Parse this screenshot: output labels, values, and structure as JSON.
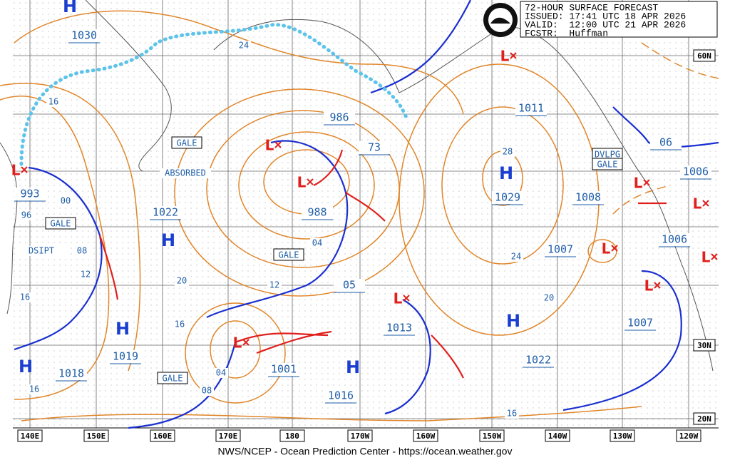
{
  "header": {
    "lines": [
      "72-HOUR SURFACE FORECAST",
      "ISSUED: 17:41 UTC 18 APR 2026",
      "VALID:  12:00 UTC 21 APR 2026",
      "FCSTR:  Huffman"
    ]
  },
  "footer": "NWS/NCEP - Ocean Prediction Center - https://ocean.weather.gov",
  "longitudes": [
    "140E",
    "150E",
    "160E",
    "170E",
    "180",
    "170W",
    "160W",
    "150W",
    "140W",
    "130W",
    "120W"
  ],
  "latitudes": [
    "60N",
    "30N",
    "20N"
  ],
  "pressure_labels": [
    "1030",
    "993",
    "1022",
    "1019",
    "1018",
    "986",
    "988",
    "73",
    "05",
    "1001",
    "1016",
    "1013",
    "1011",
    "1029",
    "1008",
    "1007",
    "1006",
    "06",
    "1006",
    "1007",
    "1022"
  ],
  "isobar_labels": [
    "24",
    "16",
    "96",
    "00",
    "08",
    "12",
    "20",
    "16",
    "12",
    "04",
    "04",
    "08",
    "16",
    "16",
    "28",
    "24",
    "20",
    "16"
  ],
  "boxed_warnings": [
    "GALE",
    "GALE",
    "GALE",
    "GALE",
    "DVLPG",
    "GALE"
  ],
  "plain_notes": [
    "ABSORBED",
    "DSIPT"
  ],
  "highs": [
    "H",
    "H",
    "H",
    "H",
    "H",
    "H",
    "H"
  ],
  "lows": [
    "L",
    "L",
    "L",
    "L",
    "L",
    "L",
    "L",
    "L",
    "L",
    "L",
    "L"
  ]
}
